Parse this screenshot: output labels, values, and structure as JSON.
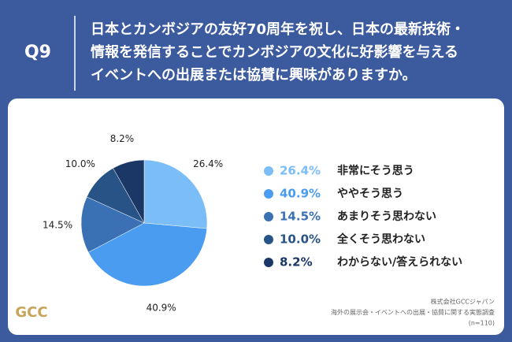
{
  "question_number": "Q9",
  "question_lines": [
    "日本とカンボジアの友好70周年を祝し、日本の最新技術・",
    "情報を発信することでカンボジアの文化に好影響を与える",
    "イベントへの出展または協賛に興味がありますか。"
  ],
  "chart_data": {
    "type": "pie",
    "categories": [
      "非常にそう思う",
      "ややそう思う",
      "あまりそう思わない",
      "全くそう思わない",
      "わからない/答えられない"
    ],
    "values": [
      26.4,
      40.9,
      14.5,
      10.0,
      8.2
    ],
    "value_labels": [
      "26.4%",
      "40.9%",
      "14.5%",
      "10.0%",
      "8.2%"
    ],
    "colors": [
      "#7bbdf6",
      "#4a9cf0",
      "#3a70b4",
      "#285386",
      "#1b3766"
    ]
  },
  "source_lines": [
    "株式会社GCCジャパン",
    "海外の展示会・イベントへの出展・協賛に関する実態調査",
    "(n=110)"
  ],
  "logo_text": "GCC"
}
